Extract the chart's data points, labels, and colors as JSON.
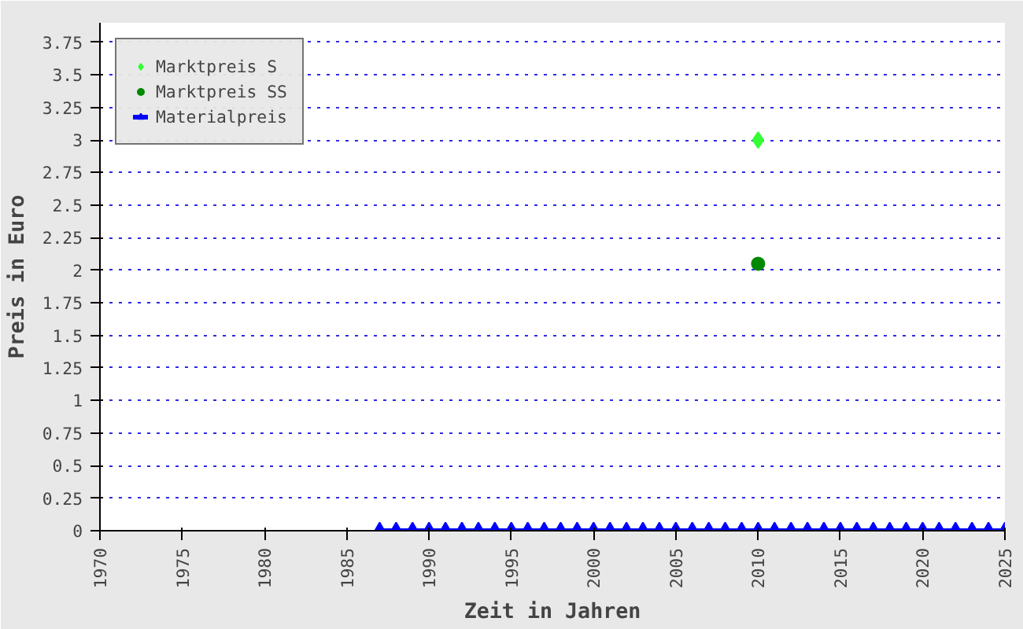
{
  "chart_data": {
    "type": "scatter",
    "xlabel": "Zeit in Jahren",
    "ylabel": "Preis in Euro",
    "xlim": [
      1970,
      2025
    ],
    "xticks": [
      1970,
      1975,
      1980,
      1985,
      1990,
      1995,
      2000,
      2005,
      2010,
      2015,
      2020,
      2025
    ],
    "ylim": [
      0,
      3.9
    ],
    "yticks": [
      0,
      0.25,
      0.5,
      0.75,
      1,
      1.25,
      1.5,
      1.75,
      2,
      2.25,
      2.5,
      2.75,
      3,
      3.25,
      3.5,
      3.75
    ],
    "grid": "y",
    "legend": "top left",
    "series": [
      {
        "name": "Marktpreis S",
        "color": "#33ff33",
        "marker": "diamond",
        "x": [
          2010
        ],
        "values": [
          3.0
        ]
      },
      {
        "name": "Marktpreis SS",
        "color": "#008800",
        "marker": "circle",
        "x": [
          2010
        ],
        "values": [
          2.05
        ]
      },
      {
        "name": "Materialpreis",
        "color": "#0000ff",
        "type": "line",
        "marker": "triangle",
        "x": [
          1987,
          1988,
          1989,
          1990,
          1991,
          1992,
          1993,
          1994,
          1995,
          1996,
          1997,
          1998,
          1999,
          2000,
          2001,
          2002,
          2003,
          2004,
          2005,
          2006,
          2007,
          2008,
          2009,
          2010,
          2011,
          2012,
          2013,
          2014,
          2015,
          2016,
          2017,
          2018,
          2019,
          2020,
          2021,
          2022,
          2023,
          2024,
          2025
        ],
        "values": [
          0,
          0,
          0,
          0,
          0,
          0,
          0,
          0,
          0,
          0,
          0,
          0,
          0,
          0,
          0,
          0,
          0,
          0,
          0,
          0,
          0,
          0,
          0,
          0,
          0,
          0,
          0,
          0,
          0,
          0,
          0,
          0,
          0,
          0,
          0,
          0,
          0,
          0,
          0
        ]
      }
    ]
  }
}
